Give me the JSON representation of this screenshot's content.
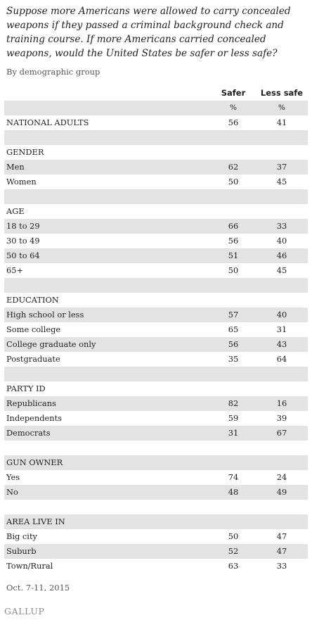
{
  "header": {
    "title": "Suppose more Americans were allowed to carry concealed weapons if they passed a criminal background check and training course. If more Americans carried concealed weapons, would the United States be safer or less safe?",
    "subtitle": "By demographic group"
  },
  "footer": {
    "date": "Oct. 7-11, 2015",
    "logo": "GALLUP"
  },
  "chart_data": {
    "type": "table",
    "columns": [
      "Safer",
      "Less safe"
    ],
    "units": [
      "%",
      "%"
    ],
    "groups": [
      {
        "name": "",
        "rows": [
          {
            "label": "NATIONAL ADULTS",
            "values": [
              56,
              41
            ]
          }
        ]
      },
      {
        "name": "GENDER",
        "rows": [
          {
            "label": "Men",
            "values": [
              62,
              37
            ]
          },
          {
            "label": "Women",
            "values": [
              50,
              45
            ]
          }
        ]
      },
      {
        "name": "AGE",
        "rows": [
          {
            "label": "18 to 29",
            "values": [
              66,
              33
            ]
          },
          {
            "label": "30 to 49",
            "values": [
              56,
              40
            ]
          },
          {
            "label": "50 to 64",
            "values": [
              51,
              46
            ]
          },
          {
            "label": "65+",
            "values": [
              50,
              45
            ]
          }
        ]
      },
      {
        "name": "EDUCATION",
        "rows": [
          {
            "label": "High school or less",
            "values": [
              57,
              40
            ]
          },
          {
            "label": "Some college",
            "values": [
              65,
              31
            ]
          },
          {
            "label": "College graduate only",
            "values": [
              56,
              43
            ]
          },
          {
            "label": "Postgraduate",
            "values": [
              35,
              64
            ]
          }
        ]
      },
      {
        "name": "PARTY ID",
        "rows": [
          {
            "label": "Republicans",
            "values": [
              82,
              16
            ]
          },
          {
            "label": "Independents",
            "values": [
              59,
              39
            ]
          },
          {
            "label": "Democrats",
            "values": [
              31,
              67
            ]
          }
        ]
      },
      {
        "name": "GUN OWNER",
        "rows": [
          {
            "label": "Yes",
            "values": [
              74,
              24
            ]
          },
          {
            "label": "No",
            "values": [
              48,
              49
            ]
          }
        ]
      },
      {
        "name": "AREA LIVE IN",
        "rows": [
          {
            "label": "Big city",
            "values": [
              50,
              47
            ]
          },
          {
            "label": "Suburb",
            "values": [
              52,
              47
            ]
          },
          {
            "label": "Town/Rural",
            "values": [
              63,
              33
            ]
          }
        ]
      }
    ]
  }
}
